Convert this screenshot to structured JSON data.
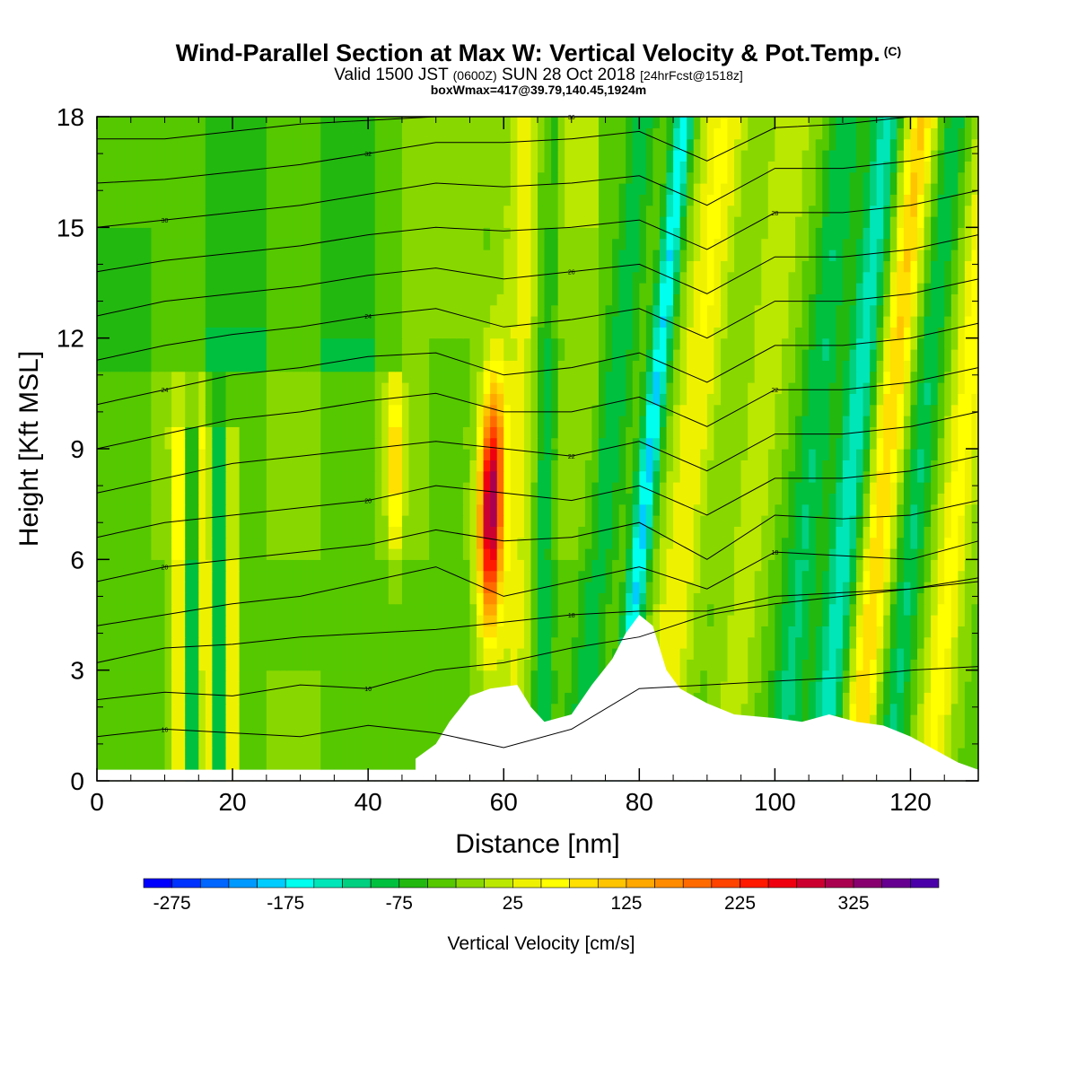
{
  "title": {
    "main": "Wind-Parallel Section at Max W: Vertical Velocity & Pot.Temp.",
    "copyright": "(C)",
    "valid_a": "Valid 1500 JST",
    "valid_z": "(0600Z)",
    "valid_b": "SUN 28 Oct 2018",
    "valid_c": "[24hrFcst@1518z]",
    "boxmax": "boxWmax=417@39.79,140.45,1924m"
  },
  "chart_data": {
    "type": "heatmap",
    "xlabel": "Distance [nm]",
    "ylabel": "Height [Kft MSL]",
    "xlim": [
      0,
      130
    ],
    "ylim": [
      0,
      18
    ],
    "x_ticks": [
      0,
      20,
      40,
      60,
      80,
      100,
      120
    ],
    "y_ticks": [
      0,
      3,
      6,
      9,
      12,
      15,
      18
    ],
    "colorbar": {
      "label": "Vertical Velocity [cm/s]",
      "min": -300,
      "max": 400,
      "step": 25,
      "tick_values": [
        -275,
        -175,
        -75,
        25,
        125,
        225,
        325
      ],
      "tick_labels": [
        "-275",
        "-175",
        "-75",
        "25",
        "125",
        "225",
        "325"
      ],
      "colors": [
        "#0000ff",
        "#0033ff",
        "#0066ff",
        "#0099ff",
        "#00ccff",
        "#00ffee",
        "#00e6b8",
        "#00d080",
        "#00c040",
        "#22b810",
        "#55c800",
        "#88d800",
        "#bbe800",
        "#eef200",
        "#ffff00",
        "#ffe000",
        "#ffc400",
        "#ffa800",
        "#ff8c00",
        "#ff6a00",
        "#ff4400",
        "#ff1a00",
        "#ee0010",
        "#cc0030",
        "#aa0050",
        "#880070",
        "#660090",
        "#4a00a8"
      ]
    },
    "terrain": [
      [
        47,
        0.6
      ],
      [
        50,
        1
      ],
      [
        52,
        1.6
      ],
      [
        55,
        2.3
      ],
      [
        58,
        2.5
      ],
      [
        62,
        2.6
      ],
      [
        64,
        2
      ],
      [
        66,
        1.6
      ],
      [
        70,
        1.8
      ],
      [
        73,
        2.6
      ],
      [
        76,
        3.3
      ],
      [
        78,
        4
      ],
      [
        80,
        4.5
      ],
      [
        82,
        4.2
      ],
      [
        84,
        3
      ],
      [
        86,
        2.5
      ],
      [
        90,
        2.1
      ],
      [
        94,
        1.8
      ],
      [
        100,
        1.7
      ],
      [
        104,
        1.6
      ],
      [
        108,
        1.8
      ],
      [
        112,
        1.6
      ],
      [
        116,
        1.5
      ],
      [
        120,
        1.2
      ],
      [
        124,
        0.8
      ],
      [
        127,
        0.5
      ],
      [
        130,
        0.3
      ]
    ],
    "terrain_base": 0.3,
    "theta_contours": [
      {
        "label": "16",
        "y": [
          1.2,
          1.4,
          1.3,
          1.2,
          1.5,
          1.3,
          0.9,
          1.4,
          2.5,
          2.6,
          2.7,
          2.8,
          3.0,
          3.1
        ]
      },
      {
        "label": "16",
        "y": [
          2.2,
          2.4,
          2.3,
          2.6,
          2.5,
          3.0,
          3.2,
          3.6,
          3.9,
          4.5,
          4.8,
          5.0,
          5.2,
          5.4
        ]
      },
      {
        "label": "18",
        "y": [
          3.2,
          3.6,
          3.7,
          3.9,
          4.0,
          4.1,
          4.3,
          4.5,
          4.6,
          4.6,
          5.0,
          5.1,
          5.2,
          5.5
        ]
      },
      {
        "label": "18",
        "y": [
          4.2,
          4.5,
          4.8,
          5.0,
          5.4,
          5.8,
          5.0,
          5.4,
          5.8,
          5.2,
          6.2,
          6.1,
          6.0,
          6.5
        ]
      },
      {
        "label": "20",
        "y": [
          5.4,
          5.8,
          6.0,
          6.2,
          6.4,
          6.8,
          6.5,
          6.6,
          7.0,
          6.0,
          7.2,
          7.1,
          7.2,
          7.6
        ]
      },
      {
        "label": "20",
        "y": [
          6.6,
          7.0,
          7.2,
          7.4,
          7.6,
          8.0,
          7.8,
          7.6,
          8.0,
          7.2,
          8.2,
          8.2,
          8.4,
          8.8
        ]
      },
      {
        "label": "22",
        "y": [
          7.8,
          8.2,
          8.6,
          8.8,
          9.0,
          9.2,
          9.0,
          8.8,
          9.2,
          8.4,
          9.4,
          9.4,
          9.6,
          10.0
        ]
      },
      {
        "label": "22",
        "y": [
          9.0,
          9.4,
          9.8,
          10.0,
          10.3,
          10.5,
          10.0,
          10.0,
          10.4,
          9.6,
          10.6,
          10.6,
          10.8,
          11.2
        ]
      },
      {
        "label": "24",
        "y": [
          10.2,
          10.6,
          11.0,
          11.2,
          11.5,
          11.6,
          11.0,
          11.2,
          11.6,
          10.8,
          11.8,
          11.8,
          12.0,
          12.4
        ]
      },
      {
        "label": "24",
        "y": [
          11.4,
          11.8,
          12.1,
          12.3,
          12.6,
          12.8,
          12.3,
          12.5,
          12.8,
          12.0,
          13.0,
          13.0,
          13.2,
          13.6
        ]
      },
      {
        "label": "26",
        "y": [
          12.6,
          13.0,
          13.2,
          13.4,
          13.7,
          13.9,
          13.6,
          13.8,
          14.0,
          13.2,
          14.2,
          14.2,
          14.4,
          14.8
        ]
      },
      {
        "label": "28",
        "y": [
          13.8,
          14.1,
          14.3,
          14.5,
          14.8,
          15.0,
          14.9,
          15.0,
          15.2,
          14.4,
          15.4,
          15.4,
          15.6,
          16.0
        ]
      },
      {
        "label": "30",
        "y": [
          15.0,
          15.2,
          15.4,
          15.6,
          15.9,
          16.2,
          16.1,
          16.2,
          16.4,
          15.6,
          16.6,
          16.6,
          16.8,
          17.2
        ]
      },
      {
        "label": "32",
        "y": [
          16.2,
          16.3,
          16.5,
          16.7,
          17.0,
          17.3,
          17.3,
          17.4,
          17.6,
          16.8,
          17.7,
          17.8,
          18.0,
          18.0
        ]
      },
      {
        "label": "36",
        "y": [
          17.4,
          17.4,
          17.6,
          17.8,
          17.9,
          18.0,
          18.0,
          18.0,
          18.0,
          18.0,
          18.0,
          18.0,
          18.0,
          18.0
        ]
      }
    ]
  }
}
